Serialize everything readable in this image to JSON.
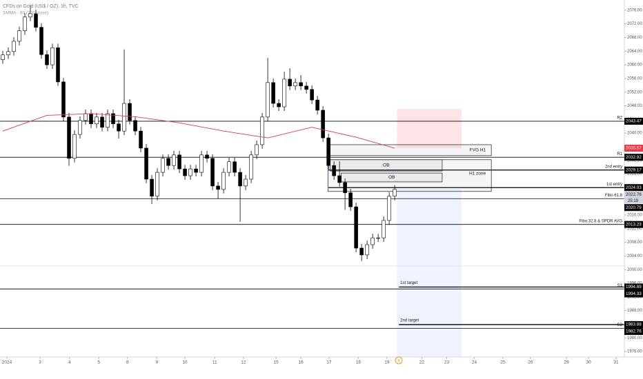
{
  "chart_data": {
    "type": "candlestick",
    "title": "CFDs on Gold (US$ / OZ), 1h, TVC",
    "up_color": "#ffffff",
    "down_color": "#000000",
    "candles": [
      [
        2061.5,
        2064.1,
        2060.3,
        2062.9
      ],
      [
        2062.9,
        2065.1,
        2061.7,
        2063.9
      ],
      [
        2063.9,
        2068.1,
        2062.7,
        2066.9
      ],
      [
        2066.9,
        2071.2,
        2065.7,
        2070
      ],
      [
        2070,
        2075.2,
        2068.8,
        2074
      ],
      [
        2074,
        2077.5,
        2072.8,
        2075
      ],
      [
        2075,
        2076.2,
        2069.8,
        2071
      ],
      [
        2071,
        2072.2,
        2061.8,
        2063
      ],
      [
        2063,
        2064.2,
        2058.8,
        2060
      ],
      [
        2060,
        2066.2,
        2058.8,
        2065
      ],
      [
        2065,
        2066.2,
        2053.8,
        2055
      ],
      [
        2055,
        2056.2,
        2043.5,
        2044.7
      ],
      [
        2044.7,
        2045.9,
        2030.4,
        2032.6
      ],
      [
        2032.6,
        2040.8,
        2031.4,
        2039.6
      ],
      [
        2039.6,
        2044.9,
        2038.4,
        2043.7
      ],
      [
        2043.7,
        2046.9,
        2042.5,
        2045.7
      ],
      [
        2045.7,
        2046.9,
        2041.5,
        2042.7
      ],
      [
        2042.7,
        2045.9,
        2041.5,
        2044.7
      ],
      [
        2044.7,
        2045.9,
        2040.5,
        2041.7
      ],
      [
        2041.7,
        2046.9,
        2040.5,
        2045.7
      ],
      [
        2045.7,
        2046.9,
        2041.5,
        2042.7
      ],
      [
        2042.7,
        2043.9,
        2038.4,
        2040.6
      ],
      [
        2040.6,
        2064.5,
        2039.4,
        2048.7
      ],
      [
        2048.7,
        2049.9,
        2042.5,
        2043.7
      ],
      [
        2043.7,
        2044.9,
        2039.4,
        2040.6
      ],
      [
        2040.6,
        2041.8,
        2034.4,
        2035.6
      ],
      [
        2035.6,
        2036.8,
        2025.3,
        2026.5
      ],
      [
        2026.5,
        2027.7,
        2019.2,
        2021.5
      ],
      [
        2021.5,
        2029.7,
        2020.3,
        2028.5
      ],
      [
        2028.5,
        2033.8,
        2027.3,
        2032.6
      ],
      [
        2032.6,
        2033.8,
        2029.3,
        2030.5
      ],
      [
        2030.5,
        2034.8,
        2029.3,
        2033.6
      ],
      [
        2033.6,
        2034.8,
        2028.3,
        2029.5
      ],
      [
        2029.5,
        2030.7,
        2026.3,
        2027.5
      ],
      [
        2027.5,
        2030.7,
        2026.3,
        2029.5
      ],
      [
        2029.5,
        2030.7,
        2027.3,
        2028.5
      ],
      [
        2028.5,
        2034.8,
        2027.3,
        2033.6
      ],
      [
        2033.6,
        2034.8,
        2031.4,
        2032.6
      ],
      [
        2032.6,
        2033.8,
        2023.3,
        2024.5
      ],
      [
        2024.5,
        2025.7,
        2020.8,
        2023.5
      ],
      [
        2023.5,
        2029.7,
        2022.3,
        2028.5
      ],
      [
        2028.5,
        2032.8,
        2027.3,
        2031.6
      ],
      [
        2031.6,
        2032.8,
        2027.3,
        2028.5
      ],
      [
        2028.5,
        2029.7,
        2014,
        2024.5
      ],
      [
        2024.5,
        2027.7,
        2023.3,
        2026.5
      ],
      [
        2026.5,
        2034.8,
        2025.3,
        2033.6
      ],
      [
        2033.6,
        2037.8,
        2032.4,
        2036.6
      ],
      [
        2036.6,
        2045.9,
        2035.4,
        2044.7
      ],
      [
        2044.7,
        2062,
        2043.5,
        2054.8
      ],
      [
        2054.8,
        2056,
        2047.5,
        2048.7
      ],
      [
        2048.7,
        2049.9,
        2046.5,
        2047.7
      ],
      [
        2047.7,
        2058,
        2046.5,
        2055.8
      ],
      [
        2055.8,
        2059,
        2052.6,
        2053.8
      ],
      [
        2053.8,
        2056,
        2052.6,
        2054.8
      ],
      [
        2054.8,
        2057,
        2052.6,
        2053.8
      ],
      [
        2053.8,
        2055,
        2051.6,
        2052.8
      ],
      [
        2052.8,
        2054,
        2048.5,
        2049.7
      ],
      [
        2049.7,
        2050.9,
        2045.5,
        2046.7
      ],
      [
        2046.7,
        2047.9,
        2037.4,
        2038.6
      ],
      [
        2038.6,
        2039.8,
        2029.3,
        2030.5
      ],
      [
        2030.5,
        2031.7,
        2026.3,
        2027.5
      ],
      [
        2027.5,
        2031.7,
        2024.3,
        2025.5
      ],
      [
        2025.5,
        2026.7,
        2017.5,
        2022.5
      ],
      [
        2022.5,
        2023.7,
        2017.2,
        2018.4
      ],
      [
        2018.4,
        2019.6,
        2005.1,
        2006.3
      ],
      [
        2006.3,
        2007.5,
        2002.5,
        2004.3
      ],
      [
        2004.3,
        2008.5,
        2003.1,
        2007.3
      ],
      [
        2007.3,
        2010.5,
        2006.1,
        2009.3
      ],
      [
        2009.3,
        2010.5,
        2008.1,
        2009.3
      ],
      [
        2009.3,
        2015.6,
        2008.1,
        2014.4
      ],
      [
        2014.4,
        2022.7,
        2013.2,
        2021.5
      ],
      [
        2021.5,
        2024.7,
        2020.3,
        2023.5
      ]
    ],
    "smma": {
      "name": "SMMA · 60 (200 close)",
      "color": "#f23645",
      "x": [
        0,
        8,
        16,
        24,
        32,
        40,
        48,
        56,
        64,
        71
      ],
      "values": [
        2040.6,
        2045.2,
        2045.7,
        2044.8,
        2043.0,
        2040.6,
        2038.6,
        2041.7,
        2038.8,
        2035.57
      ],
      "last_value": 2035.57
    },
    "last_price": 2022.76,
    "countdown": "25:19",
    "levels": [
      {
        "name": "R2",
        "value": 2043.47
      },
      {
        "name": "R1",
        "value": 2032.92
      },
      {
        "name": "2nd entry",
        "value": 2029.17,
        "from": 59
      },
      {
        "name": "1st entry",
        "value": 2024.03,
        "from": 59
      },
      {
        "name": "Fibo 61.8",
        "value": 2020.79
      },
      {
        "name": "Fibo 32.8 & SPDR AVG",
        "value": 2013.23
      },
      {
        "name": "S1",
        "value": 1994.33
      },
      {
        "name": "S2",
        "value": 1982.76
      }
    ],
    "targets": [
      {
        "name": "1st target",
        "value": 1994.89,
        "from": 71.75
      },
      {
        "name": "2nd target",
        "value": 1983.88,
        "from": 71.75
      }
    ],
    "boxes": [
      {
        "name": "FVG H1",
        "top": 2036.6,
        "bottom": 2033.4,
        "x1": 58.9,
        "x2": 88.5
      },
      {
        "name": "H1 zone",
        "top": 2032.2,
        "bottom": 2022.9,
        "x1": 58.9,
        "x2": 88.5
      },
      {
        "name": "OB",
        "top": 2032.2,
        "bottom": 2028.9,
        "x1": 59.3,
        "x2": 79.6
      },
      {
        "name": "OB",
        "top": 2028.3,
        "bottom": 2025.7,
        "x1": 61.3,
        "x2": 79.6
      }
    ],
    "zones": [
      {
        "top": 2047.1,
        "bottom": 2035.6,
        "x1": 71.4,
        "x2": 83.1,
        "color": "rgba(242,54,69,0.13)"
      },
      {
        "top": 2023.5,
        "bottom": 1974.4,
        "x1": 71.4,
        "x2": 83.1,
        "color": "rgba(41,98,255,0.08)"
      }
    ],
    "xlim": [
      -0.5,
      112.6
    ],
    "ylim": [
      1974.4,
      2079
    ],
    "xticks": [
      {
        "value": 0.75,
        "label": "2024"
      },
      {
        "value": 6.75,
        "label": "3"
      },
      {
        "value": 12.1,
        "label": "4"
      },
      {
        "value": 17.4,
        "label": "5"
      },
      {
        "value": 22.6,
        "label": "8"
      },
      {
        "value": 27.9,
        "label": "9"
      },
      {
        "value": 33,
        "label": "10"
      },
      {
        "value": 38.4,
        "label": "11"
      },
      {
        "value": 43.6,
        "label": "12"
      },
      {
        "value": 49.5,
        "label": "15"
      },
      {
        "value": 54,
        "label": "16"
      },
      {
        "value": 59.1,
        "label": "17"
      },
      {
        "value": 64.4,
        "label": "18"
      },
      {
        "value": 69.6,
        "label": "19"
      },
      {
        "value": 75.9,
        "label": "22"
      },
      {
        "value": 80.4,
        "label": "23"
      },
      {
        "value": 85.4,
        "label": "24"
      },
      {
        "value": 90.6,
        "label": "25"
      },
      {
        "value": 95.6,
        "label": "26"
      },
      {
        "value": 102.1,
        "label": "29"
      },
      {
        "value": 106.1,
        "label": "30"
      },
      {
        "value": 111.1,
        "label": "31"
      }
    ],
    "yticks": [
      {
        "value": 2076,
        "label": "2076.00"
      },
      {
        "value": 2072,
        "label": "2072.00"
      },
      {
        "value": 2068,
        "label": "2068.00"
      },
      {
        "value": 2064,
        "label": "2064.00"
      },
      {
        "value": 2060,
        "label": "2060.00"
      },
      {
        "value": 2056,
        "label": "2056.00"
      },
      {
        "value": 2052,
        "label": "2052.00"
      },
      {
        "value": 2048,
        "label": "2048.00"
      },
      {
        "value": 2044,
        "label": "2044.00"
      },
      {
        "value": 2040,
        "label": "2040.00"
      },
      {
        "value": 2036,
        "label": "2036.00"
      },
      {
        "value": 2032,
        "label": "2032.00"
      },
      {
        "value": 2028,
        "label": "2028.00"
      },
      {
        "value": 2024,
        "label": "2024.00"
      },
      {
        "value": 2020,
        "label": "2020.00"
      },
      {
        "value": 2016,
        "label": "2016.00"
      },
      {
        "value": 2012,
        "label": "2012.00"
      },
      {
        "value": 2008,
        "label": "2008.00"
      },
      {
        "value": 2004,
        "label": "2004.00"
      },
      {
        "value": 2000,
        "label": "2000.00"
      },
      {
        "value": 1996,
        "label": "1996.00"
      },
      {
        "value": 1992,
        "label": "1992.00"
      },
      {
        "value": 1988,
        "label": "1988.00"
      },
      {
        "value": 1984,
        "label": "1984.00"
      },
      {
        "value": 1980,
        "label": "1980.00"
      },
      {
        "value": 1976,
        "label": "1976.00"
      }
    ]
  }
}
